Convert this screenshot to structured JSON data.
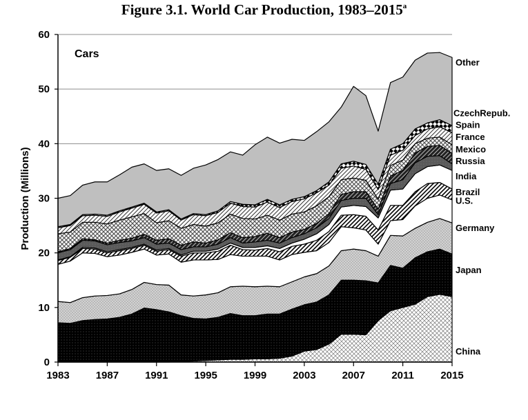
{
  "figure_title": "Figure 3.1.  World Car Production, 1983–2015",
  "figure_title_sup": "a",
  "chart_data": {
    "type": "area",
    "stacked": true,
    "panel_label": "Cars",
    "ylabel": "Production (Millions)",
    "xlabel": "",
    "xlim": [
      1983,
      2015
    ],
    "ylim": [
      0,
      60
    ],
    "x_ticks": [
      "1983",
      "1987",
      "1991",
      "1995",
      "1999",
      "2003",
      "2007",
      "2011",
      "2015"
    ],
    "y_ticks": [
      "0",
      "10",
      "20",
      "30",
      "40",
      "50",
      "60"
    ],
    "grid": "horizontal",
    "x": [
      1983,
      1984,
      1985,
      1986,
      1987,
      1988,
      1989,
      1990,
      1991,
      1992,
      1993,
      1994,
      1995,
      1996,
      1997,
      1998,
      1999,
      2000,
      2001,
      2002,
      2003,
      2004,
      2005,
      2006,
      2007,
      2008,
      2009,
      2010,
      2011,
      2012,
      2013,
      2014,
      2015
    ],
    "totals": [
      30.0,
      30.5,
      32.4,
      33.0,
      33.0,
      34.3,
      35.7,
      36.3,
      35.1,
      35.4,
      34.2,
      35.5,
      36.1,
      37.1,
      38.5,
      37.9,
      39.8,
      41.2,
      40.1,
      40.8,
      40.6,
      42.2,
      44.0,
      46.7,
      50.5,
      48.8,
      42.3,
      51.2,
      52.2,
      55.3,
      56.6,
      56.7,
      55.8
    ],
    "series": [
      {
        "name": "China",
        "values": [
          0.0,
          0.0,
          0.0,
          0.0,
          0.0,
          0.0,
          0.0,
          0.0,
          0.0,
          0.0,
          0.1,
          0.2,
          0.3,
          0.4,
          0.5,
          0.5,
          0.6,
          0.6,
          0.7,
          1.1,
          2.0,
          2.3,
          3.3,
          5.1,
          5.1,
          5.0,
          7.6,
          9.4,
          10.0,
          10.6,
          12.0,
          12.4,
          12.0
        ]
      },
      {
        "name": "Japan",
        "values": [
          7.2,
          7.1,
          7.6,
          7.8,
          7.9,
          8.2,
          8.8,
          9.9,
          9.6,
          9.2,
          8.4,
          7.8,
          7.6,
          7.8,
          8.4,
          8.0,
          7.9,
          8.2,
          8.1,
          8.6,
          8.5,
          8.7,
          9.0,
          9.9,
          9.9,
          9.9,
          6.9,
          8.3,
          7.2,
          8.5,
          8.2,
          8.3,
          7.8
        ]
      },
      {
        "name": "Germany",
        "values": [
          3.9,
          3.8,
          4.2,
          4.3,
          4.3,
          4.3,
          4.5,
          4.7,
          4.6,
          4.9,
          3.8,
          4.1,
          4.4,
          4.5,
          4.9,
          5.4,
          5.3,
          5.1,
          5.0,
          5.0,
          5.1,
          5.2,
          5.3,
          5.4,
          5.7,
          5.5,
          4.9,
          5.5,
          5.9,
          5.4,
          5.4,
          5.6,
          5.7
        ]
      },
      {
        "name": "U.S.",
        "values": [
          6.8,
          7.6,
          8.2,
          7.8,
          7.1,
          7.1,
          6.8,
          6.1,
          5.4,
          5.7,
          6.0,
          6.6,
          6.4,
          6.1,
          5.9,
          5.5,
          5.6,
          5.5,
          4.9,
          5.0,
          4.5,
          4.2,
          4.3,
          4.4,
          3.9,
          3.8,
          2.2,
          2.7,
          3.0,
          4.1,
          4.4,
          4.3,
          4.2
        ]
      },
      {
        "name": "Brazil",
        "values": [
          0.7,
          0.7,
          0.8,
          0.8,
          0.7,
          0.8,
          0.7,
          0.7,
          0.7,
          0.8,
          1.1,
          1.3,
          1.3,
          1.5,
          1.7,
          1.2,
          1.1,
          1.4,
          1.5,
          1.5,
          1.5,
          1.9,
          2.0,
          2.1,
          2.4,
          2.5,
          2.6,
          2.8,
          2.6,
          2.6,
          2.7,
          2.3,
          2.0
        ]
      },
      {
        "name": "India",
        "values": [
          0.1,
          0.1,
          0.2,
          0.2,
          0.2,
          0.2,
          0.2,
          0.2,
          0.2,
          0.2,
          0.2,
          0.3,
          0.3,
          0.4,
          0.4,
          0.4,
          0.5,
          0.5,
          0.6,
          0.6,
          0.9,
          1.2,
          1.3,
          1.5,
          1.7,
          1.8,
          2.2,
          2.8,
          3.0,
          3.3,
          3.1,
          3.2,
          3.4
        ]
      },
      {
        "name": "Russia",
        "values": [
          1.3,
          1.3,
          1.3,
          1.3,
          1.3,
          1.3,
          1.2,
          1.2,
          1.1,
          1.0,
          1.0,
          0.8,
          0.8,
          0.9,
          1.0,
          0.8,
          1.0,
          1.0,
          1.0,
          1.0,
          1.0,
          1.1,
          1.1,
          1.2,
          1.3,
          1.5,
          0.6,
          1.2,
          1.7,
          2.0,
          1.9,
          1.7,
          1.2
        ]
      },
      {
        "name": "Mexico",
        "values": [
          0.2,
          0.2,
          0.3,
          0.2,
          0.3,
          0.4,
          0.5,
          0.6,
          0.7,
          0.8,
          0.8,
          0.9,
          0.7,
          0.8,
          0.9,
          1.0,
          1.0,
          1.3,
          1.0,
          1.0,
          0.8,
          0.8,
          0.9,
          1.1,
          1.2,
          1.2,
          1.0,
          1.4,
          1.7,
          1.8,
          1.8,
          1.9,
          1.9
        ]
      },
      {
        "name": "France",
        "values": [
          3.3,
          3.0,
          3.0,
          3.2,
          3.5,
          3.7,
          3.9,
          3.8,
          3.2,
          3.3,
          3.1,
          3.2,
          3.1,
          3.1,
          3.4,
          3.5,
          3.2,
          3.3,
          3.2,
          3.3,
          3.2,
          3.2,
          3.1,
          2.7,
          2.5,
          2.1,
          1.8,
          1.9,
          1.9,
          1.7,
          1.5,
          1.5,
          1.6
        ]
      },
      {
        "name": "Spain",
        "values": [
          1.1,
          1.2,
          1.2,
          1.3,
          1.4,
          1.5,
          1.6,
          1.7,
          1.8,
          1.8,
          1.5,
          1.8,
          1.9,
          1.9,
          2.0,
          2.2,
          2.2,
          2.4,
          2.3,
          2.3,
          2.4,
          2.4,
          2.1,
          2.1,
          2.2,
          2.0,
          1.8,
          1.9,
          1.8,
          1.5,
          1.7,
          1.9,
          2.2
        ]
      },
      {
        "name": "CzechRepub.",
        "values": [
          0.2,
          0.2,
          0.2,
          0.2,
          0.2,
          0.2,
          0.2,
          0.2,
          0.2,
          0.2,
          0.2,
          0.2,
          0.2,
          0.3,
          0.3,
          0.4,
          0.4,
          0.5,
          0.5,
          0.4,
          0.4,
          0.4,
          0.6,
          0.8,
          0.9,
          0.9,
          1.0,
          1.1,
          1.2,
          1.2,
          1.1,
          1.3,
          1.3
        ]
      },
      {
        "name": "Other",
        "values": [
          5.2,
          5.3,
          5.4,
          5.9,
          6.1,
          6.6,
          7.3,
          7.2,
          7.6,
          7.5,
          8.0,
          8.3,
          9.1,
          9.4,
          9.1,
          9.0,
          10.8,
          11.4,
          11.3,
          11.0,
          10.3,
          10.8,
          11.0,
          10.4,
          13.7,
          12.6,
          9.7,
          12.2,
          12.2,
          12.6,
          12.8,
          12.3,
          12.5
        ]
      }
    ]
  }
}
